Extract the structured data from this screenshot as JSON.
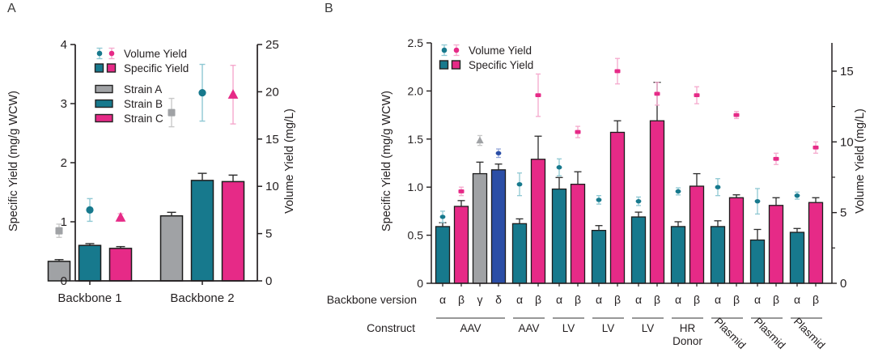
{
  "figure": {
    "panel_a": {
      "letter": "A",
      "legend": {
        "volume_label": "Volume Yield",
        "specific_label": "Specific Yield",
        "strains": [
          "Strain A",
          "Strain B",
          "Strain C"
        ]
      }
    },
    "panel_b": {
      "letter": "B",
      "legend": {
        "volume_label": "Volume Yield",
        "specific_label": "Specific Yield"
      }
    }
  },
  "colors": {
    "teal": "#17798d",
    "pink": "#e62a87",
    "gray": "#a0a2a5",
    "blue": "#2b4ea6",
    "teal_light": "#8fc8d3",
    "pink_light": "#f5a9cd",
    "gray_light": "#c9c9c9",
    "blue_light": "#95a8d9",
    "axis": "#231f20"
  },
  "chart_data": [
    {
      "panel": "A",
      "type": "bar",
      "categories": [
        "Backbone 1",
        "Backbone 2"
      ],
      "left_axis": {
        "label": "Specific Yield (mg/g WCW)",
        "range": [
          0,
          4
        ],
        "ticks": [
          "0",
          "1",
          "2",
          "3",
          "4"
        ]
      },
      "right_axis": {
        "label": "Volume Yield (mg/L)",
        "range": [
          0,
          25
        ],
        "ticks": [
          "0",
          "5",
          "10",
          "15",
          "20",
          "25"
        ]
      },
      "legend_position": "upper-left-inside",
      "grid": false,
      "series": [
        {
          "name": "Strain A",
          "color_key": "gray",
          "marker": "square",
          "specific_yield": [
            0.33,
            1.1
          ],
          "specific_err": [
            0.03,
            0.06
          ],
          "volume_yield": [
            5.3,
            17.8
          ],
          "volume_err": [
            0.7,
            1.5
          ]
        },
        {
          "name": "Strain B",
          "color_key": "teal",
          "marker": "circle",
          "specific_yield": [
            0.6,
            1.7
          ],
          "specific_err": [
            0.03,
            0.12
          ],
          "volume_yield": [
            7.5,
            19.9
          ],
          "volume_err": [
            1.2,
            3.0
          ]
        },
        {
          "name": "Strain C",
          "color_key": "pink",
          "marker": "triangle",
          "specific_yield": [
            0.55,
            1.68
          ],
          "specific_err": [
            0.03,
            0.11
          ],
          "volume_yield": [
            6.7,
            19.7
          ],
          "volume_err": [
            0.4,
            3.1
          ]
        }
      ]
    },
    {
      "panel": "B",
      "type": "bar",
      "row_labels": {
        "backbone": "Backbone version",
        "construct": "Construct"
      },
      "left_axis": {
        "label": "Specific Yield (mg/g WCW)",
        "range": [
          0,
          2.5
        ],
        "ticks": [
          "0",
          "0.5",
          "1.0",
          "1.5",
          "2.0",
          "2.5"
        ]
      },
      "right_axis": {
        "label": "Volume Yield (mg/L)",
        "range": [
          0,
          17
        ],
        "ticks": [
          "0",
          "5",
          "10",
          "15"
        ],
        "minor_ticks": [
          2.5,
          7.5,
          12.5
        ]
      },
      "grid": false,
      "groups": [
        {
          "construct": "AAV",
          "bars": [
            {
              "version": "α",
              "color_key": "teal",
              "marker": "circle",
              "specific_yield": 0.59,
              "specific_err": 0.04,
              "volume_yield": 4.7,
              "volume_err": 0.4
            },
            {
              "version": "β",
              "color_key": "pink",
              "marker": "square",
              "specific_yield": 0.8,
              "specific_err": 0.06,
              "volume_yield": 6.5,
              "volume_err": 0.3
            },
            {
              "version": "γ",
              "color_key": "gray",
              "marker": "triangle",
              "specific_yield": 1.14,
              "specific_err": 0.12,
              "volume_yield": 10.1,
              "volume_err": 0.35
            },
            {
              "version": "δ",
              "color_key": "blue",
              "marker": "circle",
              "specific_yield": 1.18,
              "specific_err": 0.06,
              "volume_yield": 9.2,
              "volume_err": 0.3
            }
          ]
        },
        {
          "construct": "AAV",
          "bars": [
            {
              "version": "α",
              "color_key": "teal",
              "marker": "circle",
              "specific_yield": 0.62,
              "specific_err": 0.05,
              "volume_yield": 7.0,
              "volume_err": 0.8
            },
            {
              "version": "β",
              "color_key": "pink",
              "marker": "square",
              "specific_yield": 1.29,
              "specific_err": 0.24,
              "volume_yield": 13.3,
              "volume_err": 1.5
            }
          ]
        },
        {
          "construct": "LV",
          "bars": [
            {
              "version": "α",
              "color_key": "teal",
              "marker": "circle",
              "specific_yield": 0.98,
              "specific_err": 0.12,
              "volume_yield": 8.2,
              "volume_err": 0.6
            },
            {
              "version": "β",
              "color_key": "pink",
              "marker": "square",
              "specific_yield": 1.03,
              "specific_err": 0.13,
              "volume_yield": 10.7,
              "volume_err": 0.4
            }
          ]
        },
        {
          "construct": "LV",
          "bars": [
            {
              "version": "α",
              "color_key": "teal",
              "marker": "circle",
              "specific_yield": 0.55,
              "specific_err": 0.05,
              "volume_yield": 5.9,
              "volume_err": 0.3
            },
            {
              "version": "β",
              "color_key": "pink",
              "marker": "square",
              "specific_yield": 1.57,
              "specific_err": 0.12,
              "volume_yield": 15.0,
              "volume_err": 0.9
            }
          ]
        },
        {
          "construct": "LV",
          "bars": [
            {
              "version": "α",
              "color_key": "teal",
              "marker": "circle",
              "specific_yield": 0.69,
              "specific_err": 0.05,
              "volume_yield": 5.8,
              "volume_err": 0.3
            },
            {
              "version": "β",
              "color_key": "pink",
              "marker": "square",
              "specific_yield": 1.69,
              "specific_err": 0.4,
              "volume_yield": 13.4,
              "volume_err": 0.8
            }
          ]
        },
        {
          "construct": "HR Donor",
          "bars": [
            {
              "version": "α",
              "color_key": "teal",
              "marker": "circle",
              "specific_yield": 0.59,
              "specific_err": 0.05,
              "volume_yield": 6.5,
              "volume_err": 0.25
            },
            {
              "version": "β",
              "color_key": "pink",
              "marker": "square",
              "specific_yield": 1.01,
              "specific_err": 0.13,
              "volume_yield": 13.3,
              "volume_err": 0.6
            }
          ]
        },
        {
          "construct": "Plasmid",
          "bars": [
            {
              "version": "α",
              "color_key": "teal",
              "marker": "circle",
              "specific_yield": 0.59,
              "specific_err": 0.06,
              "volume_yield": 6.8,
              "volume_err": 0.6
            },
            {
              "version": "β",
              "color_key": "pink",
              "marker": "square",
              "specific_yield": 0.89,
              "specific_err": 0.03,
              "volume_yield": 11.9,
              "volume_err": 0.25
            }
          ]
        },
        {
          "construct": "Plasmid",
          "bars": [
            {
              "version": "α",
              "color_key": "teal",
              "marker": "circle",
              "specific_yield": 0.45,
              "specific_err": 0.11,
              "volume_yield": 5.8,
              "volume_err": 0.9
            },
            {
              "version": "β",
              "color_key": "pink",
              "marker": "square",
              "specific_yield": 0.81,
              "specific_err": 0.08,
              "volume_yield": 8.8,
              "volume_err": 0.4
            }
          ]
        },
        {
          "construct": "Plasmid",
          "bars": [
            {
              "version": "α",
              "color_key": "teal",
              "marker": "circle",
              "specific_yield": 0.53,
              "specific_err": 0.04,
              "volume_yield": 6.2,
              "volume_err": 0.25
            },
            {
              "version": "β",
              "color_key": "pink",
              "marker": "square",
              "specific_yield": 0.84,
              "specific_err": 0.05,
              "volume_yield": 9.6,
              "volume_err": 0.4
            }
          ]
        }
      ]
    }
  ]
}
